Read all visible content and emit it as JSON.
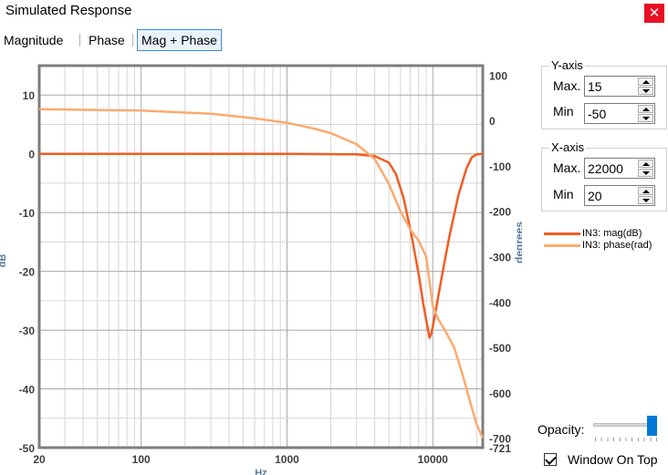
{
  "window": {
    "title": "Simulated Response",
    "close_glyph": "✕"
  },
  "tabs": [
    {
      "label": "Magnitude"
    },
    {
      "label": "Phase"
    },
    {
      "label": "Mag + Phase",
      "active": true
    }
  ],
  "y_axis_settings": {
    "title": "Y-axis",
    "max_label": "Max.",
    "max_value": "15",
    "min_label": "Min",
    "min_value": "-50"
  },
  "x_axis_settings": {
    "title": "X-axis",
    "max_label": "Max.",
    "max_value": "22000",
    "min_label": "Min",
    "min_value": "20"
  },
  "legend": [
    {
      "label": "IN3: mag(dB)",
      "color": "#f25c22"
    },
    {
      "label": "IN3: phase(rad)",
      "color": "#fbaa6e"
    }
  ],
  "opacity": {
    "label": "Opacity:",
    "value": 1.0
  },
  "window_on_top": {
    "label": "Window On Top",
    "checked": true
  },
  "chart_data": {
    "type": "line",
    "xlabel": "Hz",
    "ylabel": "dB",
    "y2label": "degrees",
    "x_scale": "log",
    "xlim": [
      20,
      22000
    ],
    "ylim": [
      -50,
      15
    ],
    "y2lim": [
      -721,
      121
    ],
    "x_ticks": [
      "20",
      "100",
      "1000",
      "10000"
    ],
    "y_ticks": [
      "10",
      "0",
      "-10",
      "-20",
      "-30",
      "-40",
      "-50"
    ],
    "y2_ticks": [
      "100",
      "0",
      "-100",
      "-200",
      "-300",
      "-400",
      "-500",
      "-600",
      "-700",
      "-721"
    ],
    "grid": true,
    "series": [
      {
        "name": "IN3: mag(dB)",
        "axis": "left",
        "color": "#f25c22",
        "x": [
          20,
          100,
          1000,
          3000,
          4000,
          5000,
          5600,
          6300,
          7100,
          8000,
          8600,
          9200,
          9500,
          9800,
          10500,
          11500,
          13000,
          15000,
          17000,
          18500,
          20000,
          22000
        ],
        "y": [
          0,
          0,
          0,
          -0.1,
          -0.4,
          -1.5,
          -3.5,
          -7.5,
          -13.5,
          -20.5,
          -25.5,
          -29.5,
          -31.3,
          -30.5,
          -26.5,
          -21,
          -14,
          -7,
          -2.5,
          -0.6,
          -0.1,
          0
        ]
      },
      {
        "name": "IN3: phase(rad)",
        "axis": "right",
        "color": "#fbaa6e",
        "x": [
          20,
          100,
          300,
          600,
          1000,
          1500,
          2000,
          3000,
          4000,
          5000,
          6000,
          7000,
          8000,
          9000,
          10000,
          11000,
          12000,
          14000,
          16000,
          18000,
          20000,
          22000
        ],
        "y": [
          25,
          22,
          15,
          5,
          -5,
          -17,
          -28,
          -52,
          -85,
          -140,
          -200,
          -240,
          -265,
          -300,
          -410,
          -440,
          -460,
          -500,
          -560,
          -620,
          -670,
          -700
        ]
      }
    ]
  }
}
